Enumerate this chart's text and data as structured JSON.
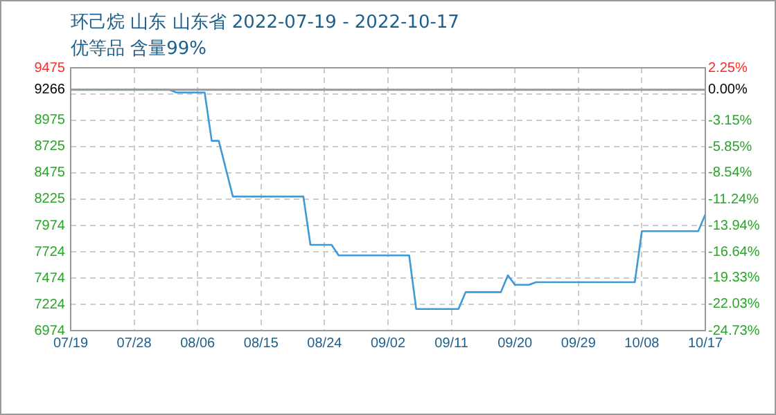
{
  "chart_data": {
    "type": "line",
    "title": "环己烷 山东 山东省 2022-07-19 - 2022-10-17",
    "subtitle": "优等品 含量99%",
    "x": [
      "2022-07-19",
      "2022-08-02",
      "2022-08-03",
      "2022-08-07",
      "2022-08-08",
      "2022-08-09",
      "2022-08-11",
      "2022-08-21",
      "2022-08-22",
      "2022-08-25",
      "2022-08-26",
      "2022-09-05",
      "2022-09-06",
      "2022-09-12",
      "2022-09-13",
      "2022-09-18",
      "2022-09-19",
      "2022-09-20",
      "2022-09-22",
      "2022-09-23",
      "2022-10-07",
      "2022-10-08",
      "2022-10-16",
      "2022-10-17"
    ],
    "series": [
      {
        "color": "#3d9ad6",
        "values": [
          9266,
          9266,
          9240,
          9240,
          8780,
          8780,
          8250,
          8250,
          7790,
          7790,
          7690,
          7690,
          7180,
          7180,
          7340,
          7340,
          7500,
          7410,
          7410,
          7435,
          7435,
          7920,
          7920,
          8080
        ]
      }
    ],
    "xlim": [
      "2022-07-19",
      "2022-10-17"
    ],
    "xticks": [
      {
        "value": "2022-07-19",
        "label": "07/19"
      },
      {
        "value": "2022-07-28",
        "label": "07/28"
      },
      {
        "value": "2022-08-06",
        "label": "08/06"
      },
      {
        "value": "2022-08-15",
        "label": "08/15"
      },
      {
        "value": "2022-08-24",
        "label": "08/24"
      },
      {
        "value": "2022-09-02",
        "label": "09/02"
      },
      {
        "value": "2022-09-11",
        "label": "09/11"
      },
      {
        "value": "2022-09-20",
        "label": "09/20"
      },
      {
        "value": "2022-09-29",
        "label": "09/29"
      },
      {
        "value": "2022-10-08",
        "label": "10/08"
      },
      {
        "value": "2022-10-17",
        "label": "10/17"
      }
    ],
    "ylim": [
      6974,
      9475
    ],
    "yticks": [
      6974,
      7224,
      7474,
      7724,
      7974,
      8225,
      8475,
      8725,
      8975,
      {
        "value": 9225,
        "label": null
      },
      9266,
      9475
    ],
    "y2lim": [
      -24.73,
      2.25
    ],
    "y2ticks": [
      {
        "value": -24.73,
        "label": "-24.73%"
      },
      {
        "value": -22.03,
        "label": "-22.03%"
      },
      {
        "value": -19.33,
        "label": "-19.33%"
      },
      {
        "value": -16.64,
        "label": "-16.64%"
      },
      {
        "value": -13.94,
        "label": "-13.94%"
      },
      {
        "value": -11.24,
        "label": "-11.24%"
      },
      {
        "value": -8.54,
        "label": "-8.54%"
      },
      {
        "value": -5.85,
        "label": "-5.85%"
      },
      {
        "value": -3.15,
        "label": "-3.15%"
      },
      {
        "value": 0,
        "label": "0.00%"
      },
      {
        "value": 2.25,
        "label": "2.25%"
      }
    ],
    "ref_lines": [
      {
        "axis": "y",
        "value": 9266,
        "color": "#999999"
      }
    ],
    "grid": true,
    "legend": false,
    "marker": "none",
    "line_style": "solid"
  }
}
